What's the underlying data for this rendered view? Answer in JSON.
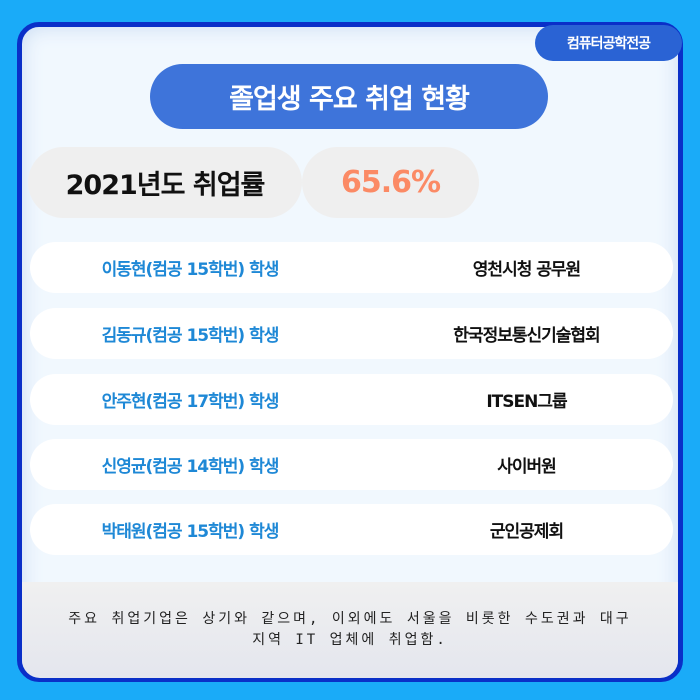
{
  "badge": "컴퓨터공학전공",
  "title": "졸업생 주요 취업 현황",
  "rate": {
    "label": "2021년도 취업률",
    "value": "65.6%"
  },
  "rows": [
    {
      "name": "이동현(컴공 15학번) 학생",
      "company": "영천시청 공무원"
    },
    {
      "name": "김동규(컴공 15학번) 학생",
      "company": "한국정보통신기술협회"
    },
    {
      "name": "안주현(컴공 17학번) 학생",
      "company": "ITSEN그룹"
    },
    {
      "name": "신영균(컴공 14학번) 학생",
      "company": "사이버원"
    },
    {
      "name": "박태원(컴공 15학번) 학생",
      "company": "군인공제회"
    }
  ],
  "note": "주요 취업기업은 상기와 같으며, 이외에도 서울을 비롯한 수도권과 대구 지역 IT 업체에 취업함.",
  "colors": {
    "background": "#1aabf8",
    "border": "#0a2fc8",
    "title": "#3e74da",
    "name": "#1e88d6",
    "rate": "#fb8a65"
  }
}
